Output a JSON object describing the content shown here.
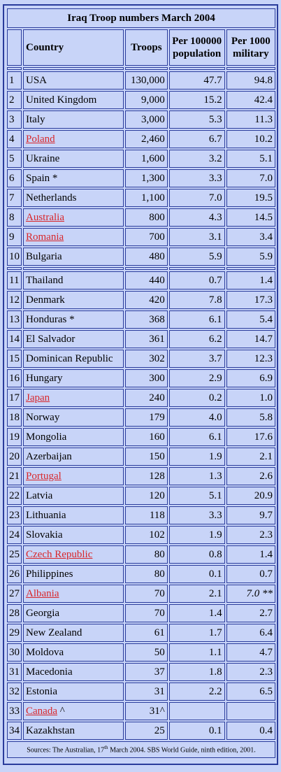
{
  "title": "Iraq Troop numbers March 2004",
  "headers": {
    "country": "Country",
    "troops": "Troops",
    "per_pop_1": "Per 100000",
    "per_pop_2": "population",
    "per_mil_1": "Per 1000",
    "per_mil_2": "military"
  },
  "group1": [
    {
      "n": "1",
      "country": "USA",
      "troops": "130,000",
      "pop": "47.7",
      "mil": "94.8"
    },
    {
      "n": "2",
      "country": "United Kingdom",
      "troops": "9,000",
      "pop": "15.2",
      "mil": "42.4"
    },
    {
      "n": "3",
      "country": "Italy",
      "troops": "3,000",
      "pop": "5.3",
      "mil": "11.3"
    },
    {
      "n": "4",
      "country": "Poland",
      "troops": "2,460",
      "pop": "6.7",
      "mil": "10.2",
      "link": true
    },
    {
      "n": "5",
      "country": "Ukraine",
      "troops": "1,600",
      "pop": "3.2",
      "mil": "5.1"
    },
    {
      "n": "6",
      "country": "Spain *",
      "troops": "1,300",
      "pop": "3.3",
      "mil": "7.0"
    },
    {
      "n": "7",
      "country": "Netherlands",
      "troops": "1,100",
      "pop": "7.0",
      "mil": "19.5"
    },
    {
      "n": "8",
      "country": "Australia",
      "troops": "800",
      "pop": "4.3",
      "mil": "14.5",
      "link": true
    },
    {
      "n": "9",
      "country": "Romania",
      "troops": "700",
      "pop": "3.1",
      "mil": "3.4",
      "link": true
    },
    {
      "n": "10",
      "country": "Bulgaria",
      "troops": "480",
      "pop": "5.9",
      "mil": "5.9"
    }
  ],
  "group2": [
    {
      "n": "11",
      "country": "Thailand",
      "troops": "440",
      "pop": "0.7",
      "mil": "1.4"
    },
    {
      "n": "12",
      "country": "Denmark",
      "troops": "420",
      "pop": "7.8",
      "mil": "17.3"
    },
    {
      "n": "13",
      "country": "Honduras *",
      "troops": "368",
      "pop": "6.1",
      "mil": "5.4"
    },
    {
      "n": "14",
      "country": "El Salvador",
      "troops": "361",
      "pop": "6.2",
      "mil": "14.7"
    },
    {
      "n": "15",
      "country": "Dominican Republic",
      "troops": "302",
      "pop": "3.7",
      "mil": "12.3"
    },
    {
      "n": "16",
      "country": "Hungary",
      "troops": "300",
      "pop": "2.9",
      "mil": "6.9"
    },
    {
      "n": "17",
      "country": "Japan",
      "troops": "240",
      "pop": "0.2",
      "mil": "1.0",
      "link": true
    },
    {
      "n": "18",
      "country": "Norway",
      "troops": "179",
      "pop": "4.0",
      "mil": "5.8"
    },
    {
      "n": "19",
      "country": "Mongolia",
      "troops": "160",
      "pop": "6.1",
      "mil": "17.6"
    },
    {
      "n": "20",
      "country": "Azerbaijan",
      "troops": "150",
      "pop": "1.9",
      "mil": "2.1"
    },
    {
      "n": "21",
      "country": "Portugal",
      "troops": "128",
      "pop": "1.3",
      "mil": "2.6",
      "link": true
    },
    {
      "n": "22",
      "country": "Latvia",
      "troops": "120",
      "pop": "5.1",
      "mil": "20.9"
    },
    {
      "n": "23",
      "country": "Lithuania",
      "troops": "118",
      "pop": "3.3",
      "mil": "9.7"
    },
    {
      "n": "24",
      "country": "Slovakia",
      "troops": "102",
      "pop": "1.9",
      "mil": "2.3"
    },
    {
      "n": "25",
      "country": "Czech Republic",
      "troops": "80",
      "pop": "0.8",
      "mil": "1.4",
      "link": true
    },
    {
      "n": "26",
      "country": "Philippines",
      "troops": "80",
      "pop": "0.1",
      "mil": "0.7"
    },
    {
      "n": "27",
      "country": "Albania",
      "troops": "70",
      "pop": "2.1",
      "mil": "7.0 **",
      "link": true,
      "italic_mil": true
    },
    {
      "n": "28",
      "country": "Georgia",
      "troops": "70",
      "pop": "1.4",
      "mil": "2.7"
    },
    {
      "n": "29",
      "country": "New Zealand",
      "troops": "61",
      "pop": "1.7",
      "mil": "6.4"
    },
    {
      "n": "30",
      "country": "Moldova",
      "troops": "50",
      "pop": "1.1",
      "mil": "4.7"
    },
    {
      "n": "31",
      "country": "Macedonia",
      "troops": "37",
      "pop": "1.8",
      "mil": "2.3"
    },
    {
      "n": "32",
      "country": "Estonia",
      "troops": "31",
      "pop": "2.2",
      "mil": "6.5"
    },
    {
      "n": "33",
      "country": "Canada ^",
      "troops": "31^",
      "pop": "",
      "mil": "",
      "link_part": "Canada"
    },
    {
      "n": "34",
      "country": "Kazakhstan",
      "troops": "25",
      "pop": "0.1",
      "mil": "0.4"
    }
  ],
  "source": {
    "before": "Sources: The Australian, 17",
    "sup": "th",
    "after": " March 2004. SBS World Guide, ninth edition, 2001."
  }
}
